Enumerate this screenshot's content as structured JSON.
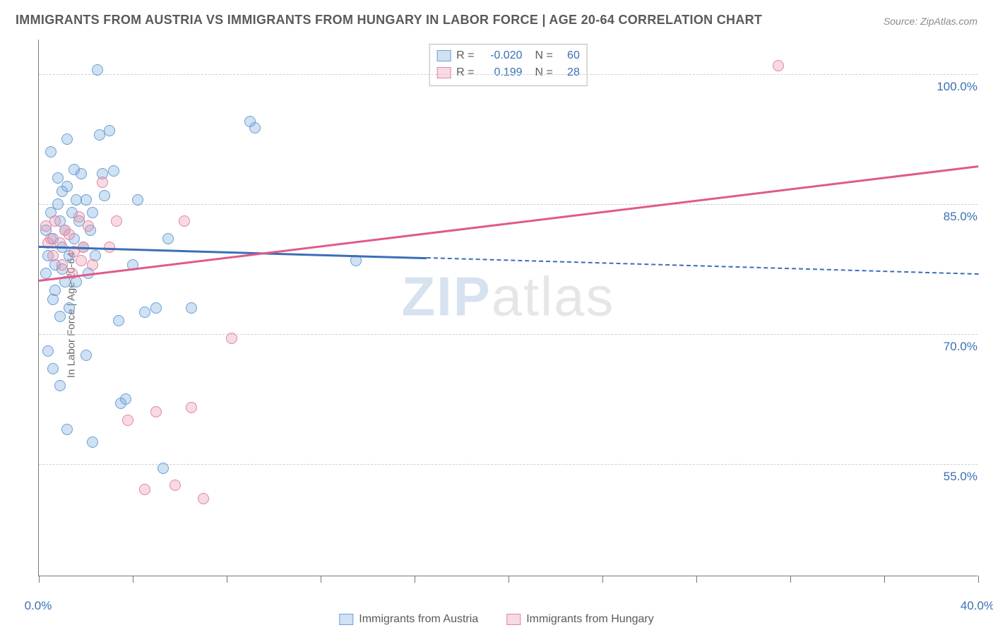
{
  "title": "IMMIGRANTS FROM AUSTRIA VS IMMIGRANTS FROM HUNGARY IN LABOR FORCE | AGE 20-64 CORRELATION CHART",
  "source": "Source: ZipAtlas.com",
  "watermark_primary": "ZIP",
  "watermark_secondary": "atlas",
  "chart": {
    "type": "scatter",
    "background_color": "#ffffff",
    "grid_color": "#cfcfcf",
    "axis_color": "#777777",
    "text_color": "#5a5a5a",
    "value_color": "#3b6fb6",
    "ylabel": "In Labor Force | Age 20-64",
    "xlim": [
      0.0,
      40.0
    ],
    "ylim": [
      42.0,
      104.0
    ],
    "ytick_values": [
      55.0,
      70.0,
      85.0,
      100.0
    ],
    "ytick_labels": [
      "55.0%",
      "70.0%",
      "85.0%",
      "100.0%"
    ],
    "xtick_values": [
      0.0,
      4.0,
      8.0,
      12.0,
      16.0,
      20.0,
      24.0,
      28.0,
      32.0,
      36.0,
      40.0
    ],
    "xtick_labels_show": [
      0.0,
      40.0
    ],
    "xtick_labels": {
      "0.0": "0.0%",
      "40.0": "40.0%"
    },
    "series": [
      {
        "name": "Immigrants from Austria",
        "color_fill": "rgba(118,168,222,0.35)",
        "color_stroke": "#6b9fd6",
        "line_color": "#3b6fb6",
        "R": "-0.020",
        "N": "60",
        "trend": {
          "x1": 0.0,
          "y1": 80.2,
          "x2": 40.0,
          "y2": 77.0,
          "solid_until_x": 16.5
        },
        "points": [
          [
            0.3,
            82
          ],
          [
            0.4,
            79
          ],
          [
            0.5,
            84
          ],
          [
            0.6,
            81
          ],
          [
            0.7,
            78
          ],
          [
            0.8,
            85
          ],
          [
            0.9,
            83
          ],
          [
            1.0,
            80
          ],
          [
            1.1,
            82
          ],
          [
            1.2,
            87
          ],
          [
            1.3,
            79
          ],
          [
            1.4,
            84
          ],
          [
            1.5,
            81
          ],
          [
            1.6,
            76
          ],
          [
            1.7,
            83
          ],
          [
            1.8,
            88.5
          ],
          [
            1.9,
            80
          ],
          [
            2.0,
            85.5
          ],
          [
            2.1,
            77
          ],
          [
            2.2,
            82
          ],
          [
            2.3,
            84
          ],
          [
            2.4,
            79
          ],
          [
            2.5,
            100.5
          ],
          [
            2.6,
            93
          ],
          [
            2.7,
            88.5
          ],
          [
            2.8,
            86
          ],
          [
            3.0,
            93.5
          ],
          [
            3.2,
            88.8
          ],
          [
            3.4,
            71.5
          ],
          [
            3.5,
            62
          ],
          [
            3.7,
            62.5
          ],
          [
            4.0,
            78
          ],
          [
            4.2,
            85.5
          ],
          [
            4.5,
            72.5
          ],
          [
            5.0,
            73
          ],
          [
            5.3,
            54.5
          ],
          [
            5.5,
            81
          ],
          [
            6.5,
            73
          ],
          [
            9.0,
            94.5
          ],
          [
            9.2,
            93.8
          ],
          [
            13.5,
            78.5
          ],
          [
            0.4,
            68
          ],
          [
            0.6,
            74
          ],
          [
            0.9,
            72
          ],
          [
            1.1,
            76
          ],
          [
            1.3,
            73
          ],
          [
            1.0,
            86.5
          ],
          [
            1.6,
            85.5
          ],
          [
            2.0,
            67.5
          ],
          [
            2.3,
            57.5
          ],
          [
            1.2,
            92.5
          ],
          [
            0.5,
            91
          ],
          [
            0.8,
            88
          ],
          [
            1.5,
            89
          ],
          [
            0.6,
            66
          ],
          [
            0.9,
            64
          ],
          [
            1.2,
            59
          ],
          [
            0.3,
            77
          ],
          [
            0.7,
            75
          ],
          [
            1.0,
            77.5
          ]
        ]
      },
      {
        "name": "Immigrants from Hungary",
        "color_fill": "rgba(236,150,175,0.35)",
        "color_stroke": "#e285a3",
        "line_color": "#e05a8a",
        "R": "0.199",
        "N": "28",
        "trend": {
          "x1": 0.0,
          "y1": 76.3,
          "x2": 40.0,
          "y2": 89.5,
          "solid_until_x": 40.0
        },
        "points": [
          [
            0.3,
            82.5
          ],
          [
            0.5,
            81
          ],
          [
            0.7,
            83
          ],
          [
            0.9,
            80.5
          ],
          [
            1.1,
            82
          ],
          [
            1.3,
            81.5
          ],
          [
            1.5,
            79.5
          ],
          [
            1.7,
            83.5
          ],
          [
            1.9,
            80
          ],
          [
            2.1,
            82.5
          ],
          [
            2.3,
            78
          ],
          [
            2.7,
            87.5
          ],
          [
            3.0,
            80
          ],
          [
            3.3,
            83
          ],
          [
            3.8,
            60
          ],
          [
            4.5,
            52
          ],
          [
            5.0,
            61
          ],
          [
            5.8,
            52.5
          ],
          [
            6.2,
            83
          ],
          [
            7.0,
            51
          ],
          [
            8.2,
            69.5
          ],
          [
            6.5,
            61.5
          ],
          [
            1.0,
            78
          ],
          [
            1.4,
            77
          ],
          [
            1.8,
            78.5
          ],
          [
            0.6,
            79
          ],
          [
            0.4,
            80.5
          ],
          [
            31.5,
            101
          ]
        ]
      }
    ]
  }
}
